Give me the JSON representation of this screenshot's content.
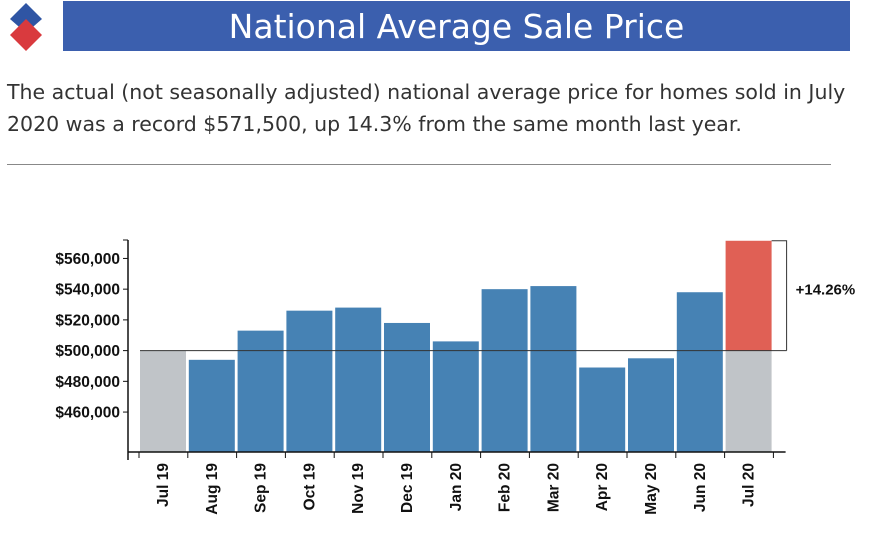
{
  "colors": {
    "brand_blue": "#3b5fae",
    "bar_blue": "#4682b4",
    "baseline_gray": "#c0c4c8",
    "highlight_red": "#e06055",
    "logo_blue": "#2f55a4",
    "logo_red": "#d93a3e"
  },
  "header": {
    "title": "National Average Sale Price"
  },
  "description": "The actual (not seasonally adjusted) national average price for homes sold in July 2020 was a record $571,500, up 14.3% from the same month last year.",
  "chart_data": {
    "type": "bar",
    "title": "National Average Sale Price",
    "xlabel": "",
    "ylabel": "",
    "categories": [
      "Jul 19",
      "Aug 19",
      "Sep 19",
      "Oct 19",
      "Nov 19",
      "Dec 19",
      "Jan 20",
      "Feb 20",
      "Mar 20",
      "Apr 20",
      "May 20",
      "Jun 20",
      "Jul 20"
    ],
    "values": [
      500000,
      494000,
      513000,
      526000,
      528000,
      518000,
      506000,
      540000,
      542000,
      489000,
      495000,
      538000,
      571500
    ],
    "baseline_value": 500000,
    "ylim": [
      434000,
      572000
    ],
    "yticks": [
      460000,
      480000,
      500000,
      520000,
      540000,
      560000
    ],
    "ytick_labels": [
      "$460,000",
      "$480,000",
      "$500,000",
      "$520,000",
      "$540,000",
      "$560,000"
    ],
    "annotation": "+14.26%",
    "grid": false
  }
}
